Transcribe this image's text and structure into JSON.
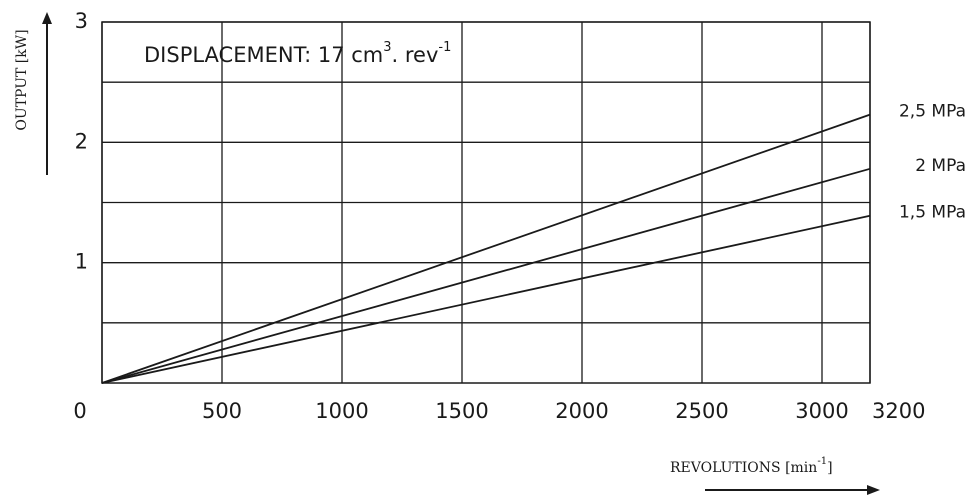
{
  "chart_data": {
    "type": "line",
    "title_parts": [
      "DISPLACEMENT: 17 cm",
      "3",
      ". rev",
      "-1"
    ],
    "y_label": "OUTPUT [kW]",
    "x_label_parts": [
      "REVOLUTIONS  [min",
      "-1",
      "]"
    ],
    "x": [
      0,
      3200
    ],
    "series": [
      {
        "name": "2,5 MPa",
        "color": "#1a1a1a",
        "values": [
          0,
          2.23
        ]
      },
      {
        "name": "2 MPa",
        "color": "#1a1a1a",
        "values": [
          0,
          1.78
        ]
      },
      {
        "name": "1,5 MPa",
        "color": "#1a1a1a",
        "values": [
          0,
          1.39
        ]
      }
    ],
    "xlim": [
      0,
      3200
    ],
    "xticks": [
      0,
      500,
      1000,
      1500,
      2000,
      2500,
      3000,
      3200
    ],
    "ylim": [
      0,
      3
    ],
    "yticks": [
      1,
      2,
      3
    ],
    "y_minor_grid": [
      0.5,
      1.5,
      2.5
    ],
    "grid": true
  }
}
